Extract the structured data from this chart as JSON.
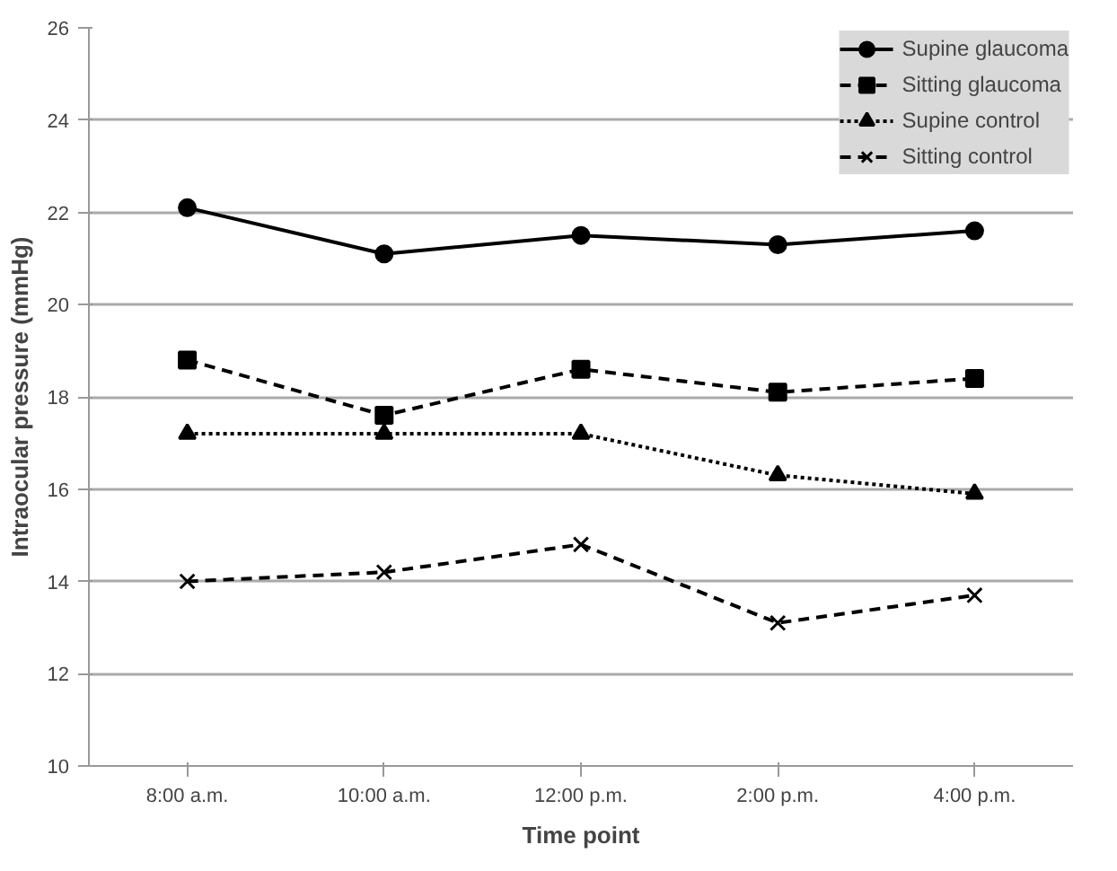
{
  "chart_data": {
    "type": "line",
    "xlabel": "Time point",
    "ylabel": "Intraocular pressure (mmHg)",
    "categories": [
      "8:00 a.m.",
      "10:00 a.m.",
      "12:00 p.m.",
      "2:00 p.m.",
      "4:00 p.m."
    ],
    "ylim": [
      10,
      26
    ],
    "yticks": [
      10,
      12,
      14,
      16,
      18,
      20,
      22,
      24,
      26
    ],
    "grid": "y",
    "legend": "top right",
    "series": [
      {
        "name": "Supine glaucoma",
        "color": "#000000",
        "marker": "circle",
        "line_style": "solid",
        "values": [
          22.1,
          21.1,
          21.5,
          21.3,
          21.6
        ]
      },
      {
        "name": "Sitting glaucoma",
        "color": "#000000",
        "marker": "square",
        "line_style": "dashed",
        "values": [
          18.8,
          17.6,
          18.6,
          18.1,
          18.4
        ]
      },
      {
        "name": "Supine control",
        "color": "#000000",
        "marker": "triangle",
        "line_style": "dotted",
        "values": [
          17.2,
          17.2,
          17.2,
          16.3,
          15.9
        ]
      },
      {
        "name": "Sitting control",
        "color": "#000000",
        "marker": "cross",
        "line_style": "dashed",
        "values": [
          14.0,
          14.2,
          14.8,
          13.1,
          13.7
        ]
      }
    ]
  }
}
